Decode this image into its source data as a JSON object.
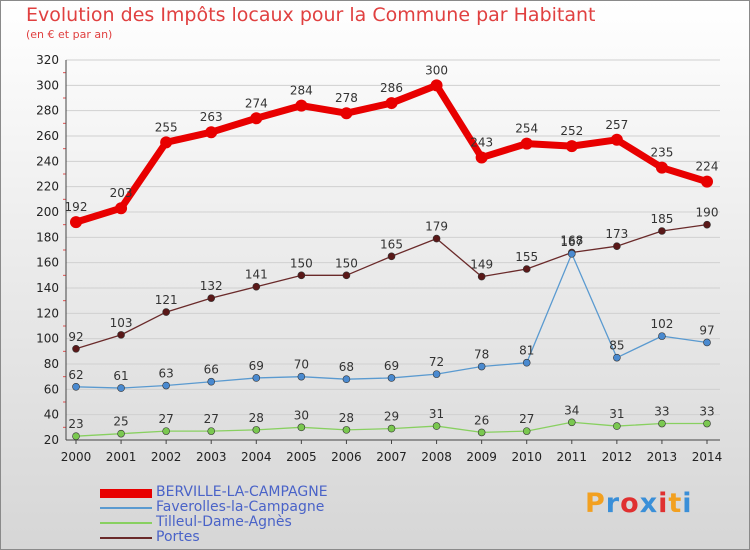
{
  "title": "Evolution des Impôts locaux pour la Commune par Habitant",
  "subtitle": "(en € et par an)",
  "logo": {
    "text": "Proxiti",
    "letters": [
      "P",
      "r",
      "o",
      "x",
      "i",
      "t",
      "i"
    ],
    "colors": [
      "#f2a020",
      "#3a8fd8",
      "#e03030",
      "#3a8fd8",
      "#e03030",
      "#f2a020",
      "#3a8fd8"
    ]
  },
  "chart_data": {
    "type": "line",
    "title": "Evolution des Impôts locaux pour la Commune par Habitant",
    "ylabel": "(en € et par an)",
    "xlabel": "",
    "ylim": [
      20,
      320
    ],
    "y_ticks": [
      20,
      40,
      60,
      80,
      100,
      120,
      140,
      160,
      180,
      200,
      220,
      240,
      260,
      280,
      300,
      320
    ],
    "categories": [
      "2000",
      "2001",
      "2002",
      "2003",
      "2004",
      "2005",
      "2006",
      "2007",
      "2008",
      "2009",
      "2010",
      "2011",
      "2012",
      "2013",
      "2014"
    ],
    "series": [
      {
        "name": "BERVILLE-LA-CAMPAGNE",
        "color": "#e80000",
        "values": [
          192,
          203,
          255,
          263,
          274,
          284,
          278,
          286,
          300,
          243,
          254,
          252,
          257,
          235,
          224
        ]
      },
      {
        "name": "Faverolles-la-Campagne",
        "color": "#5a9ad0",
        "values": [
          62,
          61,
          63,
          66,
          69,
          70,
          68,
          69,
          72,
          78,
          81,
          167,
          85,
          102,
          97
        ]
      },
      {
        "name": "Tilleul-Dame-Agnès",
        "color": "#88d060",
        "values": [
          23,
          25,
          27,
          27,
          28,
          30,
          28,
          29,
          31,
          26,
          27,
          34,
          31,
          33,
          33
        ]
      },
      {
        "name": "Portes",
        "color": "#6a2a2a",
        "values": [
          92,
          103,
          121,
          132,
          141,
          150,
          150,
          165,
          179,
          149,
          155,
          168,
          173,
          185,
          190
        ]
      }
    ]
  }
}
